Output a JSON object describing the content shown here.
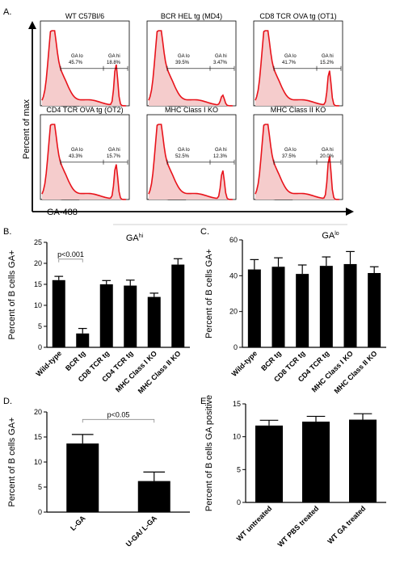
{
  "panel_labels": {
    "a": "A.",
    "b": "B.",
    "c": "C.",
    "d": "D.",
    "e": "E."
  },
  "histograms": {
    "ylabel": "Percent of max",
    "xlabel": "GA-488",
    "panels": [
      {
        "title": "WT C57Bl/6",
        "lo_label": "GA lo",
        "lo_pct": "45.7%",
        "hi_label": "GA hi",
        "hi_pct": "18.8%"
      },
      {
        "title": "BCR HEL tg (MD4)",
        "lo_label": "GA lo",
        "lo_pct": "39.5%",
        "hi_label": "GA hi",
        "hi_pct": "3.47%"
      },
      {
        "title": "CD8 TCR OVA tg (OT1)",
        "lo_label": "GA lo",
        "lo_pct": "41.7%",
        "hi_label": "GA hi",
        "hi_pct": "15.2%"
      },
      {
        "title": "CD4 TCR OVA tg (OT2)",
        "lo_label": "GA lo",
        "lo_pct": "43.3%",
        "hi_label": "GA hi",
        "hi_pct": "15.7%"
      },
      {
        "title": "MHC Class I KO",
        "lo_label": "GA lo",
        "lo_pct": "52.5%",
        "hi_label": "GA hi",
        "hi_pct": "12.3%"
      },
      {
        "title": "MHC Class II KO",
        "lo_label": "GA lo",
        "lo_pct": "37.5%",
        "hi_label": "GA hi",
        "hi_pct": "20.0%"
      }
    ]
  },
  "colors": {
    "bar": "#000000",
    "histogram_line": "#e8131b",
    "histogram_fill": "#f5cccc",
    "control_line": "#000000"
  },
  "chart_data": [
    {
      "panel": "B.",
      "type": "bar",
      "title_main": "GA",
      "title_sup": "hi",
      "ylabel": "Percent of B cells GA+",
      "categories": [
        "Wild-type",
        "BCR tg",
        "CD8 TCR tg",
        "CD4 TCR tg",
        "MHC Class I KO",
        "MHC Class II KO"
      ],
      "values": [
        16,
        3.3,
        15,
        14.7,
        12,
        19.7
      ],
      "errors": [
        0.9,
        1.2,
        0.9,
        1.3,
        0.9,
        1.4
      ],
      "ylim": [
        0,
        25
      ],
      "yticks": [
        0,
        5,
        10,
        15,
        20,
        25
      ],
      "annotation": "p<0.001"
    },
    {
      "panel": "C.",
      "type": "bar",
      "title_main": "GA",
      "title_sup": "lo",
      "ylabel": "Percent of B cells GA+",
      "categories": [
        "Wild-type",
        "BCR tg",
        "CD8 TCR tg",
        "CD4 TCR tg",
        "MHC Class I KO",
        "MHC Class II KO"
      ],
      "values": [
        43.5,
        45,
        41,
        45.5,
        46.5,
        41.5
      ],
      "errors": [
        5.5,
        5,
        5,
        5,
        7,
        3.5
      ],
      "ylim": [
        0,
        60
      ],
      "yticks": [
        0,
        20,
        40,
        60
      ]
    },
    {
      "panel": "D.",
      "type": "bar",
      "ylabel": "Percent of B cells GA+",
      "categories": [
        "L-GA",
        "U-GA/ L-GA"
      ],
      "values": [
        13.7,
        6.2
      ],
      "errors": [
        1.8,
        1.8
      ],
      "ylim": [
        0,
        20
      ],
      "yticks": [
        0,
        5,
        10,
        15,
        20
      ],
      "annotation": "p<0.05"
    },
    {
      "panel": "E.",
      "type": "bar",
      "ylabel": "Percent of B cells GA positive",
      "categories": [
        "WT untreated",
        "WT PBS treated",
        "WT GA treated"
      ],
      "values": [
        11.7,
        12.3,
        12.6
      ],
      "errors": [
        0.8,
        0.8,
        0.9
      ],
      "ylim": [
        0,
        15
      ],
      "yticks": [
        0,
        5,
        10,
        15
      ]
    }
  ]
}
